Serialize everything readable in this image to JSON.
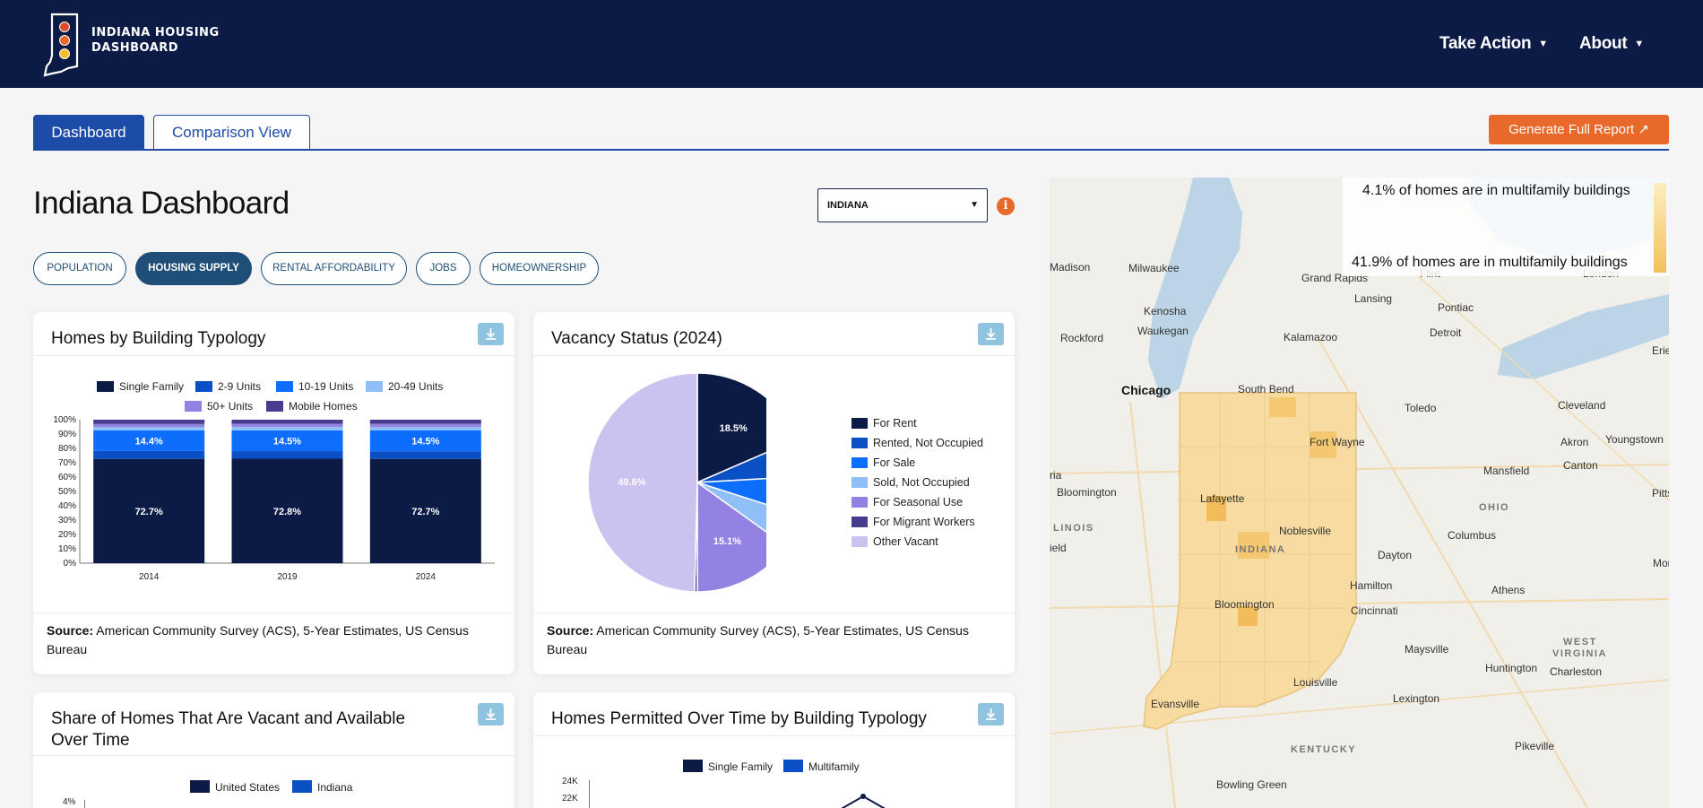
{
  "header": {
    "brand_line1": "INDIANA HOUSING",
    "brand_line2": "DASHBOARD",
    "nav": [
      {
        "label": "Take Action"
      },
      {
        "label": "About"
      }
    ]
  },
  "tabs": [
    {
      "label": "Dashboard",
      "active": true
    },
    {
      "label": "Comparison View",
      "active": false
    }
  ],
  "report_button": "Generate Full Report ↗",
  "page_title": "Indiana Dashboard",
  "region_select": {
    "value": "INDIANA"
  },
  "category_pills": [
    {
      "label": "POPULATION",
      "active": false
    },
    {
      "label": "HOUSING SUPPLY",
      "active": true
    },
    {
      "label": "RENTAL AFFORDABILITY",
      "active": false
    },
    {
      "label": "JOBS",
      "active": false
    },
    {
      "label": "HOMEOWNERSHIP",
      "active": false
    }
  ],
  "cards": {
    "typology": {
      "title": "Homes by Building Typology",
      "source_label": "Source:",
      "source_text": " American Community Survey (ACS), 5-Year Estimates, US Census Bureau"
    },
    "vacancy": {
      "title": "Vacancy Status (2024)",
      "source_label": "Source:",
      "source_text": " American Community Survey (ACS), 5-Year Estimates, US Census Bureau"
    },
    "vacant_available": {
      "title": "Share of Homes That Are Vacant and Available Over Time"
    },
    "permitted": {
      "title": "Homes Permitted Over Time by Building Typology"
    }
  },
  "chart_data": [
    {
      "type": "bar",
      "stacked": true,
      "title": "Homes by Building Typology",
      "categories": [
        "2014",
        "2019",
        "2024"
      ],
      "series": [
        {
          "name": "Single Family",
          "color": "#0c1b45",
          "values": [
            72.7,
            72.8,
            72.7
          ]
        },
        {
          "name": "2-9 Units",
          "color": "#0b4fc4",
          "values": [
            5.5,
            5.3,
            5.3
          ]
        },
        {
          "name": "10-19 Units",
          "color": "#0d6efd",
          "values": [
            14.4,
            14.5,
            14.5
          ]
        },
        {
          "name": "20-49 Units",
          "color": "#8fbff6",
          "values": [
            2.2,
            2.3,
            2.4
          ]
        },
        {
          "name": "50+ Units",
          "color": "#9382e2",
          "values": [
            2.2,
            2.2,
            2.2
          ]
        },
        {
          "name": "Mobile Homes",
          "color": "#473d8f",
          "values": [
            3.0,
            2.9,
            2.9
          ]
        }
      ],
      "labels_shown": [
        {
          "series": "Single Family",
          "labels": [
            "72.7%",
            "72.8%",
            "72.7%"
          ]
        },
        {
          "series": "10-19 Units",
          "labels": [
            "14.4%",
            "14.5%",
            "14.5%"
          ]
        }
      ],
      "y_ticks": [
        "0%",
        "10%",
        "20%",
        "30%",
        "40%",
        "50%",
        "60%",
        "70%",
        "80%",
        "90%",
        "100%"
      ],
      "ylim": [
        0,
        100
      ],
      "legend_placement": "top"
    },
    {
      "type": "pie",
      "title": "Vacancy Status (2024)",
      "slices": [
        {
          "name": "For Rent",
          "value": 18.5,
          "color": "#0c1b45",
          "label": "18.5%"
        },
        {
          "name": "Rented, Not Occupied",
          "value": 5.6,
          "color": "#0b4fc4"
        },
        {
          "name": "For Sale",
          "value": 5.8,
          "color": "#0d6efd"
        },
        {
          "name": "Sold, Not Occupied",
          "value": 5.0,
          "color": "#8fbff6"
        },
        {
          "name": "For Seasonal Use",
          "value": 15.1,
          "color": "#9382e2",
          "label": "15.1%"
        },
        {
          "name": "For Migrant Workers",
          "value": 0.4,
          "color": "#473d8f"
        },
        {
          "name": "Other Vacant",
          "value": 49.6,
          "color": "#cbc2f0",
          "label": "49.6%"
        }
      ],
      "legend_placement": "right"
    },
    {
      "type": "line",
      "title": "Share of Homes That Are Vacant and Available Over Time",
      "series": [
        {
          "name": "United States",
          "color": "#0c1b45"
        },
        {
          "name": "Indiana",
          "color": "#0b4fc4"
        }
      ],
      "y_ticks_visible": [
        "4%"
      ]
    },
    {
      "type": "line",
      "title": "Homes Permitted Over Time by Building Typology",
      "series": [
        {
          "name": "Single Family",
          "color": "#0c1b45"
        },
        {
          "name": "Multifamily",
          "color": "#0b4fc4"
        }
      ],
      "y_ticks_visible": [
        "24K",
        "22K"
      ]
    }
  ],
  "map": {
    "legend_max": "4.1% of homes are in multifamily buildings",
    "legend_min": "41.9% of homes are in multifamily buildings",
    "places": [
      {
        "name": "Milwaukee"
      },
      {
        "name": "Madison"
      },
      {
        "name": "Grand Rapids"
      },
      {
        "name": "Lansing"
      },
      {
        "name": "Flint"
      },
      {
        "name": "London"
      },
      {
        "name": "Kenosha"
      },
      {
        "name": "Pontiac"
      },
      {
        "name": "Waukegan"
      },
      {
        "name": "Detroit"
      },
      {
        "name": "Rockford"
      },
      {
        "name": "Kalamazoo"
      },
      {
        "name": "Erie"
      },
      {
        "name": "Chicago"
      },
      {
        "name": "South Bend"
      },
      {
        "name": "Toledo"
      },
      {
        "name": "Cleveland"
      },
      {
        "name": "Fort Wayne"
      },
      {
        "name": "Akron"
      },
      {
        "name": "Youngstown"
      },
      {
        "name": "Mansfield"
      },
      {
        "name": "Canton"
      },
      {
        "name": "Lafayette"
      },
      {
        "name": "Bloomington"
      },
      {
        "name": "OHIO"
      },
      {
        "name": "Pittsb"
      },
      {
        "name": "Noblesville"
      },
      {
        "name": "LINOIS"
      },
      {
        "name": "Columbus"
      },
      {
        "name": "INDIANA"
      },
      {
        "name": "Dayton"
      },
      {
        "name": "Morg"
      },
      {
        "name": "Hamilton"
      },
      {
        "name": "Athens"
      },
      {
        "name": "Bloomington"
      },
      {
        "name": "Cincinnati"
      },
      {
        "name": "WEST"
      },
      {
        "name": "VIRGINIA"
      },
      {
        "name": "Maysville"
      },
      {
        "name": "Huntington"
      },
      {
        "name": "Charleston"
      },
      {
        "name": "Louisville"
      },
      {
        "name": "Evansville"
      },
      {
        "name": "Lexington"
      },
      {
        "name": "Pikeville"
      },
      {
        "name": "KENTUCKY"
      },
      {
        "name": "Bowling Green"
      },
      {
        "name": "ria"
      },
      {
        "name": "ield"
      }
    ]
  }
}
